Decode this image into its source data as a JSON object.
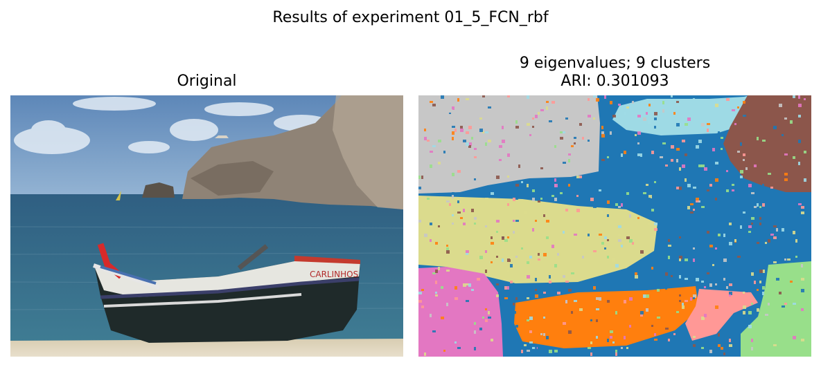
{
  "figure": {
    "suptitle": "Results of experiment 01_5_FCN_rbf"
  },
  "left_panel": {
    "title": "Original",
    "boat_name": "CARLINHOS"
  },
  "right_panel": {
    "title_line1": "9 eigenvalues; 9 clusters",
    "title_line2": "ARI: 0.301093",
    "cluster_colors": [
      "#1f77b4",
      "#c7c7c7",
      "#9edae5",
      "#8c564b",
      "#dbdb8d",
      "#e377c2",
      "#ff7f0e",
      "#ff9896",
      "#98df8a"
    ]
  }
}
